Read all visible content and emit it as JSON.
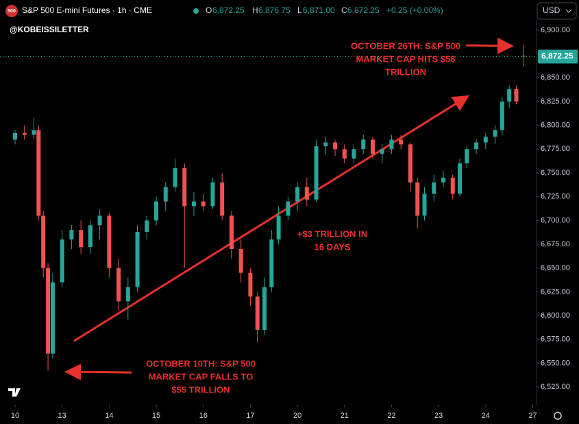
{
  "header": {
    "badge": "500",
    "title": "S&P 500 E-mini Futures · 1h · CME",
    "o_label": "O",
    "o": "6,872.25",
    "h_label": "H",
    "h": "6,876.75",
    "l_label": "L",
    "l": "6,871.00",
    "c_label": "C",
    "c": "6,872.25",
    "change": "+0.25 (+0.00%)",
    "currency": "USD",
    "watermark": "@KOBEISSILETTER"
  },
  "chart_data": {
    "type": "candlestick",
    "up_color": "#26a69a",
    "down_color": "#ef5350",
    "xlim": [
      -0.32,
      11.08
    ],
    "ylim": [
      6506.3,
      6911.5
    ],
    "xticks": [
      {
        "value": 0,
        "label": "10"
      },
      {
        "value": 1,
        "label": "13"
      },
      {
        "value": 2,
        "label": "14"
      },
      {
        "value": 3,
        "label": "15"
      },
      {
        "value": 4,
        "label": "16"
      },
      {
        "value": 5,
        "label": "17"
      },
      {
        "value": 6,
        "label": "20"
      },
      {
        "value": 7,
        "label": "21"
      },
      {
        "value": 8,
        "label": "22"
      },
      {
        "value": 9,
        "label": "23"
      },
      {
        "value": 10,
        "label": "24"
      },
      {
        "value": 11,
        "label": "27"
      }
    ],
    "yticks": [
      {
        "value": 6525,
        "label": "6,525.00"
      },
      {
        "value": 6550,
        "label": "6,550.00"
      },
      {
        "value": 6575,
        "label": "6,575.00"
      },
      {
        "value": 6600,
        "label": "6,600.00"
      },
      {
        "value": 6625,
        "label": "6,625.00"
      },
      {
        "value": 6650,
        "label": "6,650.00"
      },
      {
        "value": 6675,
        "label": "6,675.00"
      },
      {
        "value": 6700,
        "label": "6,700.00"
      },
      {
        "value": 6725,
        "label": "6,725.00"
      },
      {
        "value": 6750,
        "label": "6,750.00"
      },
      {
        "value": 6775,
        "label": "6,775.00"
      },
      {
        "value": 6800,
        "label": "6,800.00"
      },
      {
        "value": 6825,
        "label": "6,825.00"
      },
      {
        "value": 6850,
        "label": "6,850.00"
      },
      {
        "value": 6875,
        "label": "6,875.00"
      },
      {
        "value": 6900,
        "label": "6,900.00"
      }
    ],
    "last_price": {
      "value": 6872.25,
      "label": "6,872.25"
    },
    "x": [
      0.0,
      0.2,
      0.4,
      0.5,
      0.6,
      0.7,
      0.8,
      1.0,
      1.2,
      1.4,
      1.6,
      1.8,
      2.0,
      2.2,
      2.4,
      2.6,
      2.8,
      3.0,
      3.2,
      3.4,
      3.6,
      3.8,
      4.0,
      4.2,
      4.4,
      4.6,
      4.8,
      5.0,
      5.15,
      5.3,
      5.45,
      5.6,
      5.8,
      6.0,
      6.2,
      6.4,
      6.6,
      6.8,
      7.0,
      7.2,
      7.4,
      7.6,
      7.8,
      8.0,
      8.2,
      8.4,
      8.55,
      8.7,
      8.9,
      9.1,
      9.3,
      9.45,
      9.6,
      9.8,
      10.0,
      10.2,
      10.35,
      10.5,
      10.65,
      10.8
    ],
    "open": [
      6785,
      6792,
      6790,
      6795,
      6705,
      6650,
      6560,
      6635,
      6680,
      6690,
      6672,
      6695,
      6705,
      6650,
      6615,
      6630,
      6688,
      6700,
      6720,
      6735,
      6755,
      6715,
      6720,
      6715,
      6740,
      6705,
      6670,
      6645,
      6620,
      6585,
      6630,
      6680,
      6705,
      6720,
      6735,
      6722,
      6778,
      6782,
      6775,
      6765,
      6775,
      6785,
      6770,
      6775,
      6785,
      6780,
      6740,
      6705,
      6728,
      6740,
      6745,
      6728,
      6760,
      6775,
      6782,
      6788,
      6795,
      6825,
      6838,
      6873
    ],
    "high": [
      6795,
      6800,
      6808,
      6800,
      6710,
      6655,
      6645,
      6690,
      6695,
      6700,
      6700,
      6712,
      6708,
      6660,
      6640,
      6695,
      6705,
      6725,
      6740,
      6765,
      6760,
      6730,
      6728,
      6745,
      6750,
      6710,
      6680,
      6650,
      6625,
      6640,
      6690,
      6715,
      6725,
      6740,
      6745,
      6785,
      6788,
      6785,
      6780,
      6780,
      6790,
      6788,
      6780,
      6790,
      6790,
      6782,
      6745,
      6735,
      6748,
      6752,
      6748,
      6765,
      6778,
      6785,
      6792,
      6800,
      6830,
      6842,
      6842,
      6885
    ],
    "low": [
      6780,
      6785,
      6785,
      6700,
      6640,
      6542,
      6555,
      6630,
      6670,
      6665,
      6665,
      6680,
      6640,
      6605,
      6595,
      6625,
      6680,
      6695,
      6710,
      6730,
      6650,
      6705,
      6710,
      6712,
      6700,
      6660,
      6635,
      6610,
      6572,
      6580,
      6625,
      6675,
      6700,
      6710,
      6715,
      6720,
      6770,
      6768,
      6760,
      6760,
      6770,
      6765,
      6760,
      6770,
      6775,
      6730,
      6692,
      6700,
      6720,
      6735,
      6722,
      6725,
      6755,
      6770,
      6775,
      6780,
      6790,
      6818,
      6822,
      6862
    ],
    "close": [
      6792,
      6790,
      6795,
      6705,
      6650,
      6560,
      6635,
      6680,
      6690,
      6672,
      6695,
      6705,
      6650,
      6615,
      6630,
      6688,
      6700,
      6720,
      6735,
      6755,
      6715,
      6720,
      6715,
      6740,
      6705,
      6670,
      6645,
      6620,
      6585,
      6630,
      6680,
      6705,
      6720,
      6735,
      6722,
      6778,
      6782,
      6775,
      6765,
      6775,
      6785,
      6770,
      6775,
      6785,
      6780,
      6740,
      6705,
      6728,
      6740,
      6745,
      6728,
      6760,
      6775,
      6782,
      6788,
      6795,
      6825,
      6838,
      6825,
      6872.25
    ],
    "annotations": [
      {
        "lines": [
          "OCTOBER 26TH: S&P 500",
          "MARKET CAP HITS $58",
          "TRILLION"
        ]
      },
      {
        "lines": [
          "+$3 TRILLION IN",
          "16 DAYS"
        ]
      },
      {
        "lines": [
          "OCTOBER 10TH: S&P 500",
          "MARKET CAP FALLS TO",
          "$55 TRILLION"
        ]
      }
    ]
  }
}
